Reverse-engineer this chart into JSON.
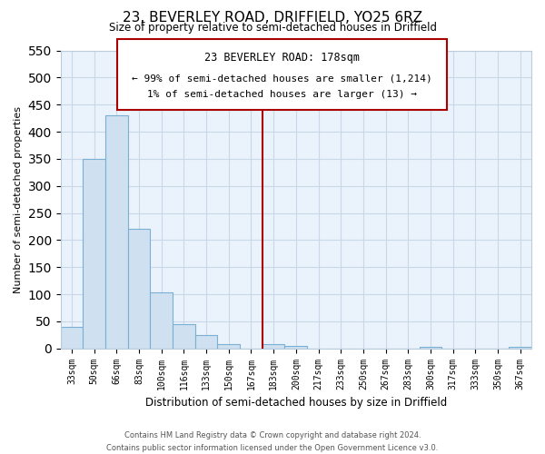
{
  "title": "23, BEVERLEY ROAD, DRIFFIELD, YO25 6RZ",
  "subtitle": "Size of property relative to semi-detached houses in Driffield",
  "xlabel": "Distribution of semi-detached houses by size in Driffield",
  "ylabel": "Number of semi-detached properties",
  "bin_labels": [
    "33sqm",
    "50sqm",
    "66sqm",
    "83sqm",
    "100sqm",
    "116sqm",
    "133sqm",
    "150sqm",
    "167sqm",
    "183sqm",
    "200sqm",
    "217sqm",
    "233sqm",
    "250sqm",
    "267sqm",
    "283sqm",
    "300sqm",
    "317sqm",
    "333sqm",
    "350sqm",
    "367sqm"
  ],
  "bar_heights": [
    40,
    350,
    430,
    220,
    103,
    44,
    25,
    8,
    0,
    8,
    5,
    0,
    0,
    0,
    0,
    0,
    3,
    0,
    0,
    0,
    3
  ],
  "bar_color": "#cfe0f0",
  "bar_edge_color": "#7ab0d4",
  "vline_idx": 9,
  "vline_color": "#aa0000",
  "ylim": [
    0,
    550
  ],
  "yticks": [
    0,
    50,
    100,
    150,
    200,
    250,
    300,
    350,
    400,
    450,
    500,
    550
  ],
  "annotation_title": "23 BEVERLEY ROAD: 178sqm",
  "annotation_line1": "← 99% of semi-detached houses are smaller (1,214)",
  "annotation_line2": "1% of semi-detached houses are larger (13) →",
  "footer_line1": "Contains HM Land Registry data © Crown copyright and database right 2024.",
  "footer_line2": "Contains public sector information licensed under the Open Government Licence v3.0.",
  "grid_color": "#c8d8e8",
  "background_color": "#eaf2fb"
}
